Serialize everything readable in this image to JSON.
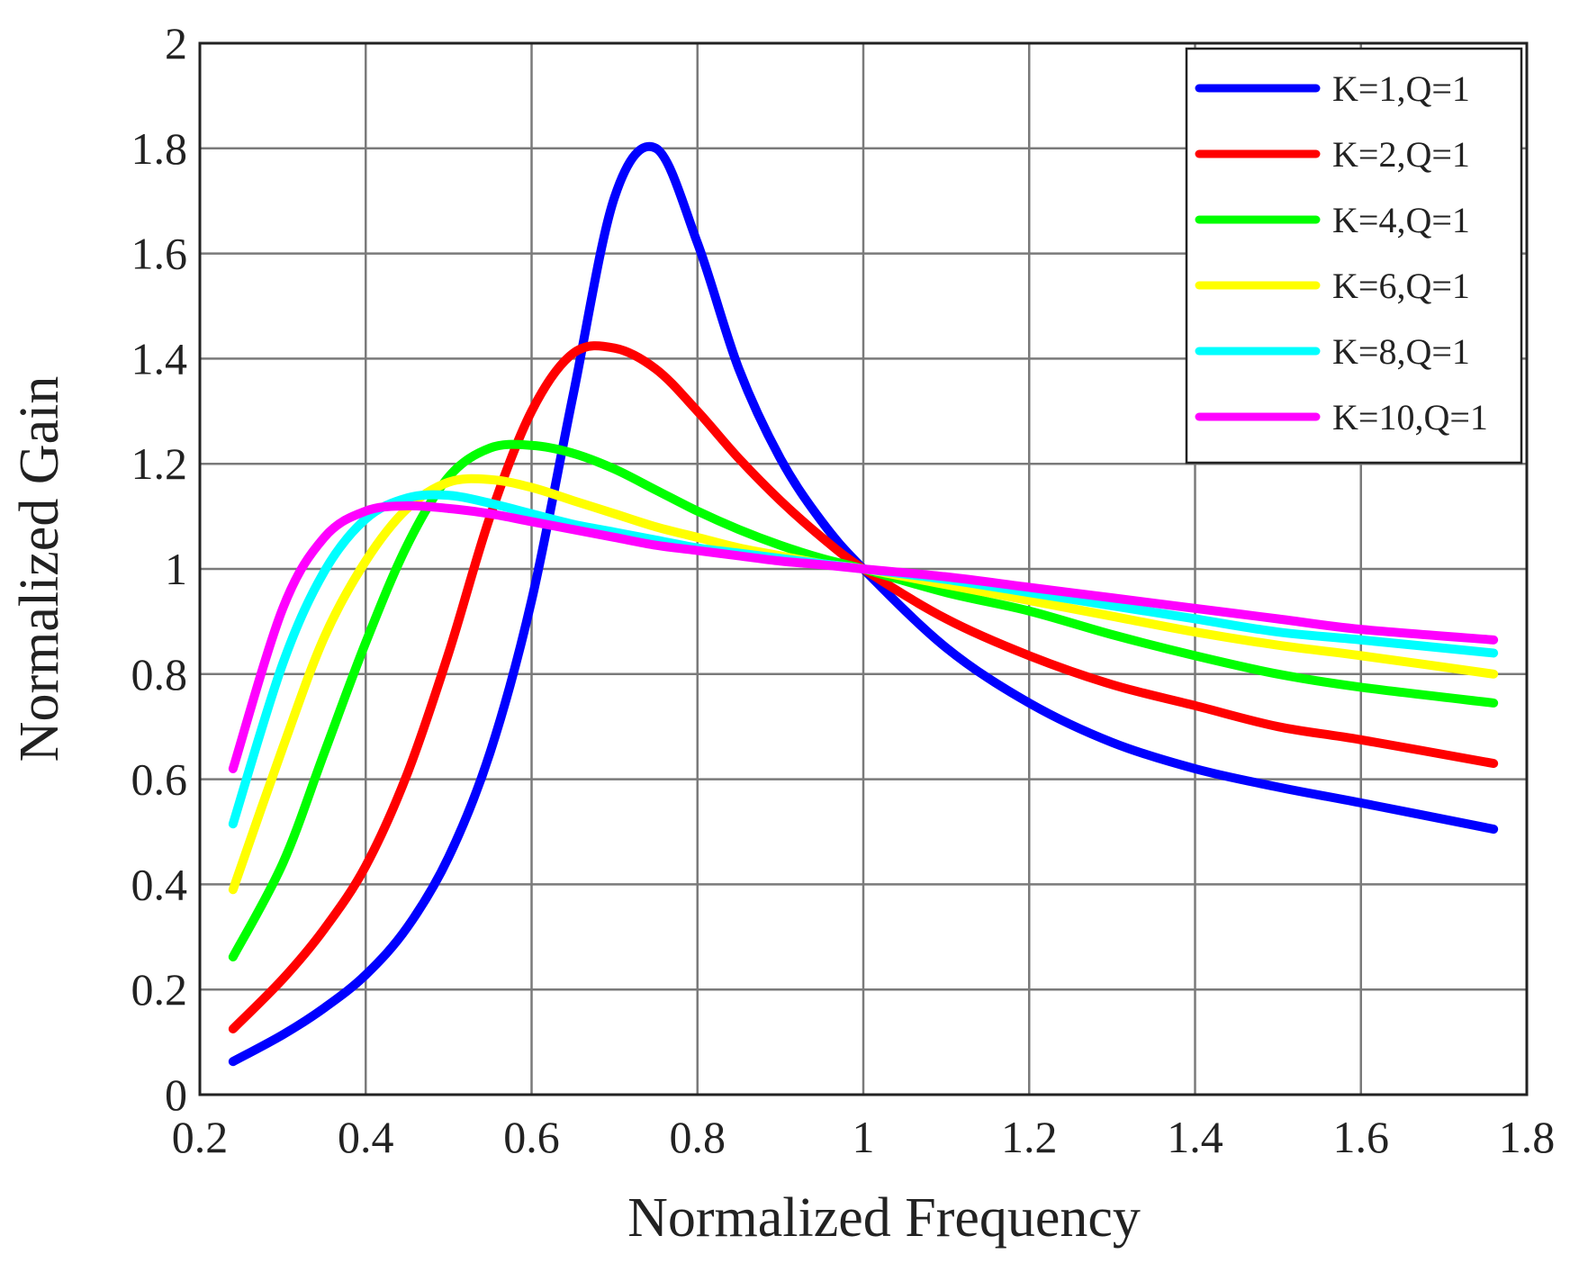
{
  "chart_data": {
    "type": "line",
    "title": "",
    "xlabel": "Normalized Frequency",
    "ylabel": "Normalized Gain",
    "xlim": [
      0.2,
      1.8
    ],
    "ylim": [
      0,
      2
    ],
    "grid": true,
    "legend_position": "top-right",
    "x_ticks": [
      0.2,
      0.4,
      0.6,
      0.8,
      1,
      1.2,
      1.4,
      1.6,
      1.8
    ],
    "x_tick_labels": [
      "0.2",
      "0.4",
      "0.6",
      "0.8",
      "1",
      "1.2",
      "1.4",
      "1.6",
      "1.8"
    ],
    "y_ticks": [
      0,
      0.2,
      0.4,
      0.6,
      0.8,
      1,
      1.2,
      1.4,
      1.6,
      1.8,
      2
    ],
    "y_tick_labels": [
      "0",
      "0.2",
      "0.4",
      "0.6",
      "0.8",
      "1",
      "1.2",
      "1.4",
      "1.6",
      "1.8",
      "2"
    ],
    "x": [
      0.24,
      0.3,
      0.35,
      0.4,
      0.45,
      0.5,
      0.55,
      0.6,
      0.65,
      0.7,
      0.75,
      0.8,
      0.85,
      0.9,
      0.95,
      1.0,
      1.1,
      1.2,
      1.3,
      1.4,
      1.5,
      1.6,
      1.76
    ],
    "series": [
      {
        "name": "K=1,Q=1",
        "color": "#0000ff",
        "values": [
          0.063,
          0.114,
          0.165,
          0.228,
          0.318,
          0.452,
          0.651,
          0.94,
          1.33,
          1.707,
          1.8,
          1.62,
          1.38,
          1.21,
          1.09,
          1.0,
          0.85,
          0.745,
          0.67,
          0.62,
          0.585,
          0.555,
          0.505
        ]
      },
      {
        "name": "K=2,Q=1",
        "color": "#ff0000",
        "values": [
          0.125,
          0.22,
          0.315,
          0.435,
          0.61,
          0.84,
          1.1,
          1.3,
          1.41,
          1.42,
          1.38,
          1.3,
          1.21,
          1.13,
          1.06,
          1.0,
          0.905,
          0.835,
          0.78,
          0.74,
          0.7,
          0.675,
          0.63
        ]
      },
      {
        "name": "K=4,Q=1",
        "color": "#00ff00",
        "values": [
          0.262,
          0.44,
          0.65,
          0.86,
          1.045,
          1.175,
          1.23,
          1.235,
          1.22,
          1.19,
          1.15,
          1.11,
          1.075,
          1.045,
          1.02,
          1.0,
          0.955,
          0.92,
          0.875,
          0.835,
          0.8,
          0.775,
          0.745
        ]
      },
      {
        "name": "K=6,Q=1",
        "color": "#ffff00",
        "values": [
          0.39,
          0.66,
          0.87,
          1.015,
          1.115,
          1.165,
          1.17,
          1.155,
          1.13,
          1.105,
          1.08,
          1.06,
          1.04,
          1.025,
          1.01,
          1.0,
          0.97,
          0.94,
          0.91,
          0.88,
          0.855,
          0.835,
          0.8
        ]
      },
      {
        "name": "K=8,Q=1",
        "color": "#00ffff",
        "values": [
          0.515,
          0.82,
          0.995,
          1.095,
          1.135,
          1.14,
          1.125,
          1.105,
          1.085,
          1.07,
          1.055,
          1.04,
          1.03,
          1.02,
          1.01,
          1.0,
          0.98,
          0.955,
          0.93,
          0.905,
          0.88,
          0.865,
          0.84
        ]
      },
      {
        "name": "K=10,Q=1",
        "color": "#ff00ff",
        "values": [
          0.62,
          0.925,
          1.06,
          1.11,
          1.12,
          1.115,
          1.105,
          1.09,
          1.075,
          1.06,
          1.045,
          1.035,
          1.025,
          1.015,
          1.008,
          1.0,
          0.985,
          0.965,
          0.945,
          0.925,
          0.905,
          0.885,
          0.865
        ]
      }
    ]
  }
}
